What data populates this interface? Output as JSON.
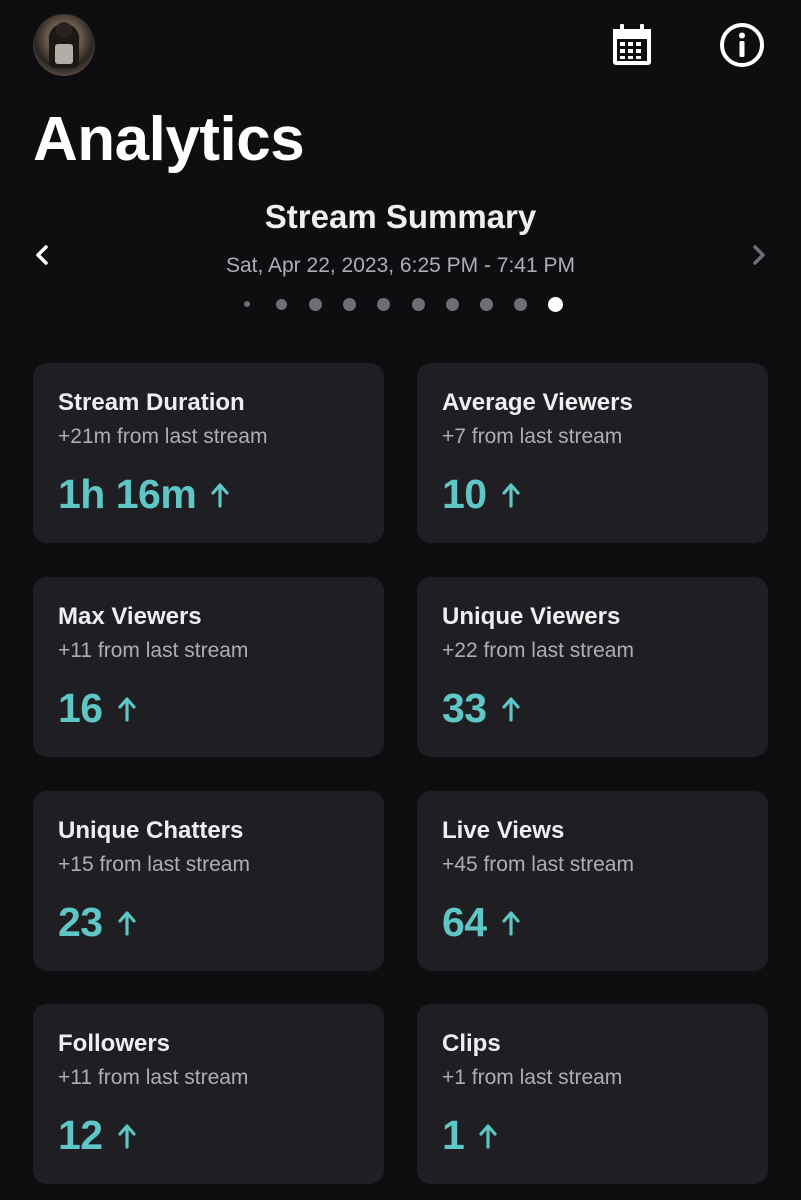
{
  "header": {
    "title": "Analytics",
    "avatar_icon": "user-avatar",
    "calendar_icon": "calendar-icon",
    "info_icon": "info-icon"
  },
  "summary": {
    "title": "Stream Summary",
    "date_range": "Sat, Apr 22, 2023, 6:25 PM - 7:41 PM",
    "page_count": 10,
    "active_page": 10
  },
  "colors": {
    "background": "#0e0e10",
    "card": "#1f1f23",
    "accent": "#5ec6c4",
    "muted_text": "#adadb8"
  },
  "stats": [
    {
      "label": "Stream Duration",
      "delta": "+21m from last stream",
      "value": "1h 16m",
      "trend": "up"
    },
    {
      "label": "Average Viewers",
      "delta": "+7 from last stream",
      "value": "10",
      "trend": "up"
    },
    {
      "label": "Max Viewers",
      "delta": "+11 from last stream",
      "value": "16",
      "trend": "up"
    },
    {
      "label": "Unique Viewers",
      "delta": "+22 from last stream",
      "value": "33",
      "trend": "up"
    },
    {
      "label": "Unique Chatters",
      "delta": "+15 from last stream",
      "value": "23",
      "trend": "up"
    },
    {
      "label": "Live Views",
      "delta": "+45 from last stream",
      "value": "64",
      "trend": "up"
    },
    {
      "label": "Followers",
      "delta": "+11 from last stream",
      "value": "12",
      "trend": "up"
    },
    {
      "label": "Clips",
      "delta": "+1 from last stream",
      "value": "1",
      "trend": "up"
    }
  ]
}
